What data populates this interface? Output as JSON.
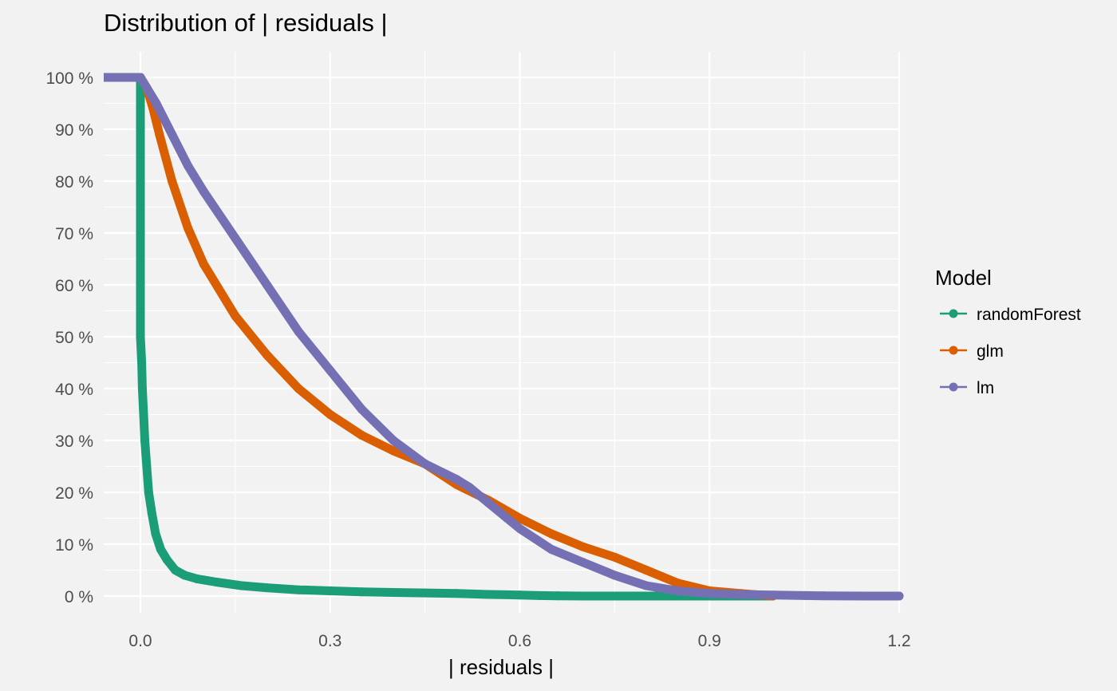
{
  "chart_data": {
    "type": "line",
    "title": "Distribution of | residuals |",
    "xlabel": "| residuals |",
    "ylabel": "",
    "xlim": [
      -0.06,
      1.2
    ],
    "ylim": [
      0,
      100
    ],
    "x_ticks": [
      0.0,
      0.3,
      0.6,
      0.9,
      1.2
    ],
    "x_tick_labels": [
      "0.0",
      "0.3",
      "0.6",
      "0.9",
      "1.2"
    ],
    "y_ticks": [
      0,
      10,
      20,
      30,
      40,
      50,
      60,
      70,
      80,
      90,
      100
    ],
    "y_tick_labels": [
      "0 %",
      "10 %",
      "20 %",
      "30 %",
      "40 %",
      "50 %",
      "60 %",
      "70 %",
      "80 %",
      "90 %",
      "100 %"
    ],
    "grid": true,
    "legend": {
      "title": "Model",
      "position": "right"
    },
    "series": [
      {
        "name": "randomForest",
        "color": "#1b9e77",
        "points": [
          [
            0.0,
            100
          ],
          [
            0.0,
            95
          ],
          [
            0.0,
            90
          ],
          [
            0.0,
            85
          ],
          [
            0.0,
            80
          ],
          [
            0.0,
            75
          ],
          [
            0.0,
            72
          ],
          [
            0.0,
            70
          ],
          [
            0.0,
            65
          ],
          [
            0.0,
            60
          ],
          [
            0.0,
            55
          ],
          [
            0.0,
            50
          ],
          [
            0.002,
            45
          ],
          [
            0.003,
            40
          ],
          [
            0.005,
            35
          ],
          [
            0.007,
            30
          ],
          [
            0.01,
            25
          ],
          [
            0.013,
            20
          ],
          [
            0.018,
            16
          ],
          [
            0.024,
            12
          ],
          [
            0.032,
            9
          ],
          [
            0.042,
            7
          ],
          [
            0.055,
            5
          ],
          [
            0.07,
            4
          ],
          [
            0.09,
            3.3
          ],
          [
            0.12,
            2.7
          ],
          [
            0.16,
            2.0
          ],
          [
            0.2,
            1.6
          ],
          [
            0.25,
            1.2
          ],
          [
            0.3,
            1.0
          ],
          [
            0.35,
            0.8
          ],
          [
            0.4,
            0.7
          ],
          [
            0.45,
            0.6
          ],
          [
            0.5,
            0.5
          ],
          [
            0.55,
            0.3
          ],
          [
            0.6,
            0.2
          ],
          [
            0.63,
            0.1
          ],
          [
            0.66,
            0.05
          ],
          [
            0.7,
            0.0
          ],
          [
            0.9,
            0.0
          ],
          [
            1.0,
            0.0
          ]
        ]
      },
      {
        "name": "glm",
        "color": "#d95f02",
        "points": [
          [
            0.0,
            100
          ],
          [
            0.01,
            98
          ],
          [
            0.02,
            94
          ],
          [
            0.03,
            89
          ],
          [
            0.05,
            80
          ],
          [
            0.075,
            71
          ],
          [
            0.1,
            64
          ],
          [
            0.15,
            54
          ],
          [
            0.2,
            46.5
          ],
          [
            0.25,
            40
          ],
          [
            0.3,
            35
          ],
          [
            0.35,
            31
          ],
          [
            0.4,
            28
          ],
          [
            0.45,
            25.5
          ],
          [
            0.5,
            21.5
          ],
          [
            0.55,
            18.5
          ],
          [
            0.6,
            15
          ],
          [
            0.65,
            12
          ],
          [
            0.7,
            9.5
          ],
          [
            0.75,
            7.5
          ],
          [
            0.8,
            5
          ],
          [
            0.85,
            2.5
          ],
          [
            0.9,
            1.0
          ],
          [
            0.95,
            0.5
          ],
          [
            1.0,
            0.0
          ]
        ]
      },
      {
        "name": "lm",
        "color": "#7570b3",
        "points": [
          [
            -0.06,
            100
          ],
          [
            0.0,
            100
          ],
          [
            0.025,
            95
          ],
          [
            0.05,
            89
          ],
          [
            0.075,
            83
          ],
          [
            0.1,
            78
          ],
          [
            0.15,
            69
          ],
          [
            0.2,
            60
          ],
          [
            0.25,
            51
          ],
          [
            0.3,
            43.5
          ],
          [
            0.35,
            36
          ],
          [
            0.4,
            30
          ],
          [
            0.45,
            25.5
          ],
          [
            0.5,
            22.5
          ],
          [
            0.52,
            21
          ],
          [
            0.55,
            18
          ],
          [
            0.58,
            15
          ],
          [
            0.6,
            13
          ],
          [
            0.65,
            9
          ],
          [
            0.7,
            6.5
          ],
          [
            0.75,
            4
          ],
          [
            0.8,
            2
          ],
          [
            0.85,
            1.0
          ],
          [
            0.9,
            0.5
          ],
          [
            0.95,
            0.3
          ],
          [
            1.0,
            0.2
          ],
          [
            1.05,
            0.1
          ],
          [
            1.08,
            0.05
          ],
          [
            1.145,
            0.0
          ],
          [
            1.2,
            0.0
          ]
        ]
      }
    ]
  }
}
